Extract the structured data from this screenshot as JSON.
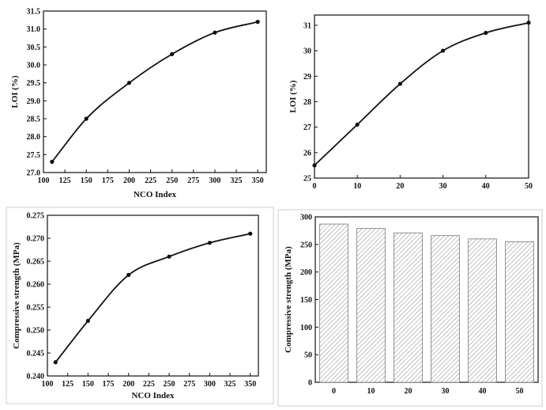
{
  "chart_data": [
    {
      "type": "scatter",
      "fit_line": true,
      "x": [
        110,
        150,
        200,
        250,
        300,
        350
      ],
      "y": [
        27.3,
        28.5,
        29.5,
        30.3,
        30.9,
        31.2
      ],
      "xlabel": "NCO Index",
      "ylabel": "LOI (%)",
      "xlim": [
        100,
        360
      ],
      "ylim": [
        27.0,
        31.5
      ],
      "xticks": [
        100,
        125,
        150,
        175,
        200,
        225,
        250,
        275,
        300,
        325,
        350
      ],
      "yticks": [
        27.0,
        27.5,
        28.0,
        28.5,
        29.0,
        29.5,
        30.0,
        30.5,
        31.0,
        31.5
      ],
      "ytick_labels": [
        "27.0",
        "27.5",
        "28.0",
        "28.5",
        "29.0",
        "29.5",
        "30.0",
        "30.5",
        "31.0",
        "31.5"
      ]
    },
    {
      "type": "scatter",
      "fit_line": true,
      "x": [
        0,
        10,
        20,
        30,
        40,
        50
      ],
      "y": [
        25.5,
        27.1,
        28.7,
        30.0,
        30.7,
        31.1
      ],
      "xlabel": "",
      "ylabel": "LOI (%)",
      "xlim": [
        0,
        50
      ],
      "ylim": [
        25,
        31.4
      ],
      "xticks": [
        0,
        10,
        20,
        30,
        40,
        50
      ],
      "yticks": [
        25,
        26,
        27,
        28,
        29,
        30,
        31
      ],
      "ytick_labels": [
        "25",
        "26",
        "27",
        "28",
        "29",
        "30",
        "31"
      ]
    },
    {
      "type": "scatter",
      "fit_line": true,
      "x": [
        110,
        150,
        200,
        250,
        300,
        350
      ],
      "y": [
        0.243,
        0.252,
        0.262,
        0.266,
        0.269,
        0.271
      ],
      "xlabel": "NCO Index",
      "ylabel": "Compressive strength (MPa)",
      "xlim": [
        100,
        360
      ],
      "ylim": [
        0.24,
        0.275
      ],
      "xticks": [
        100,
        125,
        150,
        175,
        200,
        225,
        250,
        275,
        300,
        325,
        350
      ],
      "yticks": [
        0.24,
        0.245,
        0.25,
        0.255,
        0.26,
        0.265,
        0.27,
        0.275
      ],
      "ytick_labels": [
        "0.240",
        "0.245",
        "0.250",
        "0.255",
        "0.260",
        "0.265",
        "0.270",
        "0.275"
      ]
    },
    {
      "type": "bar",
      "categories": [
        "0",
        "10",
        "20",
        "30",
        "40",
        "50"
      ],
      "values": [
        287,
        279,
        271,
        266,
        260,
        255
      ],
      "xlabel": "",
      "ylabel": "Compressive strength (MPa)",
      "ylim": [
        0,
        300
      ],
      "yticks": [
        0,
        50,
        100,
        150,
        200,
        250,
        300
      ],
      "ytick_labels": [
        "0",
        "50",
        "100",
        "150",
        "200",
        "250",
        "300"
      ]
    }
  ]
}
